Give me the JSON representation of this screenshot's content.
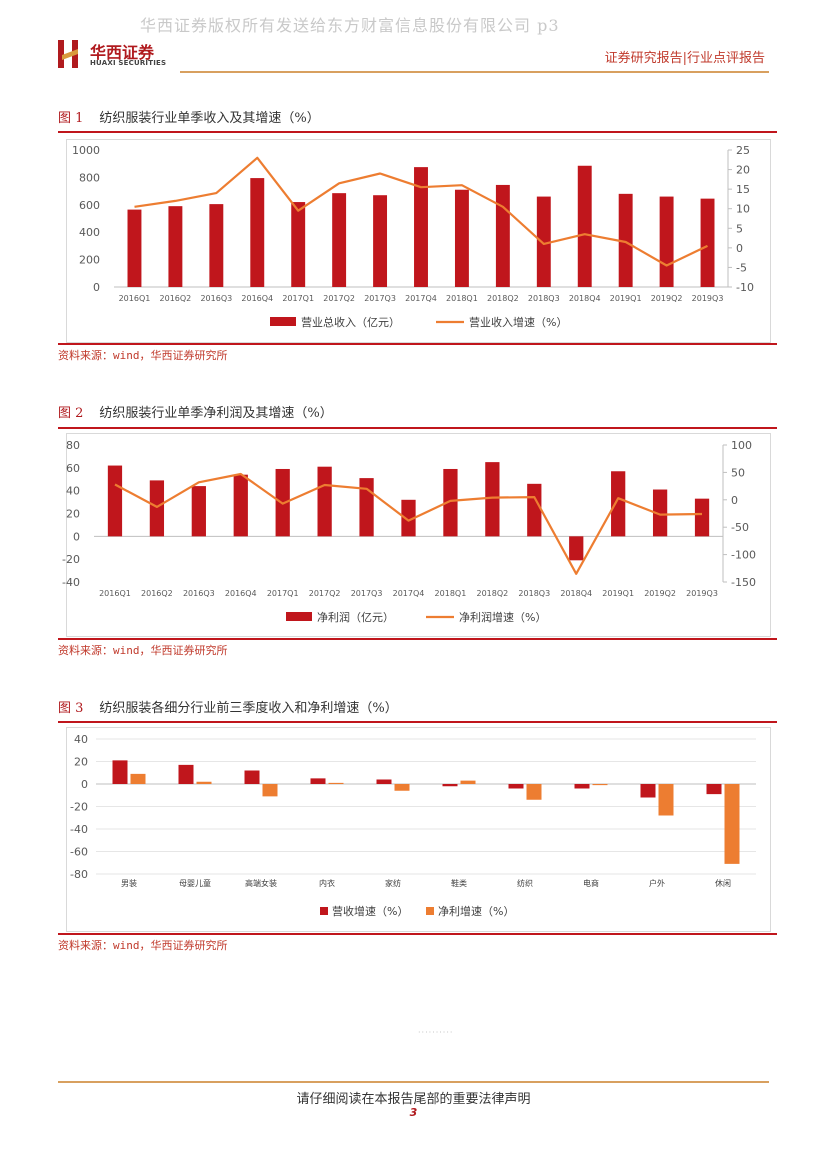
{
  "watermark": "华西证券版权所有发送给东方财富信息股份有限公司 p3",
  "header": {
    "logo_cn": "华西证券",
    "logo_en": "HUAXI SECURITIES",
    "right_text": "证券研究报告|行业点评报告",
    "colors": {
      "brand": "#b01a1e",
      "accent_line": "#d8a05f"
    }
  },
  "figures": [
    {
      "num": "图 1",
      "title": "纺织服装行业单季收入及其增速（%）",
      "source": "资料来源：wind，华西证券研究所"
    },
    {
      "num": "图 2",
      "title": "纺织服装行业单季净利润及其增速（%）",
      "source": "资料来源：wind，华西证券研究所"
    },
    {
      "num": "图 3",
      "title": "纺织服装各细分行业前三季度收入和净利增速（%）",
      "source": "资料来源：wind，华西证券研究所"
    }
  ],
  "chart_data": [
    {
      "type": "bar",
      "categories": [
        "2016Q1",
        "2016Q2",
        "2016Q3",
        "2016Q4",
        "2017Q1",
        "2017Q2",
        "2017Q3",
        "2017Q4",
        "2018Q1",
        "2018Q2",
        "2018Q3",
        "2018Q4",
        "2019Q1",
        "2019Q2",
        "2019Q3"
      ],
      "series": [
        {
          "name": "营业总收入（亿元）",
          "type": "bar",
          "axis": "left",
          "color": "#c0161c",
          "values": [
            565,
            590,
            605,
            795,
            620,
            685,
            670,
            875,
            710,
            745,
            660,
            885,
            680,
            660,
            645
          ]
        },
        {
          "name": "营业收入增速（%）",
          "type": "line",
          "axis": "right",
          "color": "#ed7d31",
          "values": [
            10.5,
            12,
            14,
            23,
            9.5,
            16.5,
            19,
            15.5,
            16,
            10.5,
            1,
            3.5,
            1.5,
            -4.5,
            0.5
          ]
        }
      ],
      "ylim": [
        0,
        1000
      ],
      "yticks": [
        "0",
        "200",
        "400",
        "600",
        "800",
        "1000"
      ],
      "y2lim": [
        -10,
        25
      ],
      "y2ticks": [
        "-10",
        "-5",
        "0",
        "5",
        "10",
        "15",
        "20",
        "25"
      ],
      "legend": "bottom"
    },
    {
      "type": "bar",
      "categories": [
        "2016Q1",
        "2016Q2",
        "2016Q3",
        "2016Q4",
        "2017Q1",
        "2017Q2",
        "2017Q3",
        "2017Q4",
        "2018Q1",
        "2018Q2",
        "2018Q3",
        "2018Q4",
        "2019Q1",
        "2019Q2",
        "2019Q3"
      ],
      "series": [
        {
          "name": "净利润（亿元）",
          "type": "bar",
          "axis": "left",
          "color": "#c0161c",
          "values": [
            62,
            49,
            44,
            54,
            59,
            61,
            51,
            32,
            59,
            65,
            46,
            -21,
            57,
            41,
            33
          ]
        },
        {
          "name": "净利润增速（%）",
          "type": "line",
          "axis": "right",
          "color": "#ed7d31",
          "values": [
            28,
            -13,
            32,
            47,
            -7,
            27,
            20,
            -38,
            -2,
            4,
            5,
            -135,
            3,
            -27,
            -26
          ]
        }
      ],
      "ylim": [
        -40,
        80
      ],
      "yticks": [
        "-40",
        "-20",
        "0",
        "20",
        "40",
        "60",
        "80"
      ],
      "y2lim": [
        -150,
        100
      ],
      "y2ticks": [
        "-150",
        "-100",
        "-50",
        "0",
        "50",
        "100"
      ],
      "legend": "bottom"
    },
    {
      "type": "bar",
      "categories": [
        "男装",
        "母婴儿童",
        "高端女装",
        "内衣",
        "家纺",
        "鞋类",
        "纺织",
        "电商",
        "户外",
        "休闲"
      ],
      "series": [
        {
          "name": "营收增速（%）",
          "color": "#c0161c",
          "values": [
            21,
            17,
            12,
            5,
            4,
            -2,
            -4,
            -4,
            -12,
            -9
          ]
        },
        {
          "name": "净利增速（%）",
          "color": "#ed7d31",
          "values": [
            9,
            2,
            -11,
            1,
            -6,
            3,
            -14,
            -1,
            -28,
            -71
          ]
        }
      ],
      "ylim": [
        -80,
        40
      ],
      "yticks": [
        "-80",
        "-60",
        "-40",
        "-20",
        "0",
        "20",
        "40"
      ],
      "legend": "bottom"
    }
  ],
  "footer": {
    "disclaimer": "请仔细阅读在本报告尾部的重要法律声明",
    "page": "3"
  }
}
